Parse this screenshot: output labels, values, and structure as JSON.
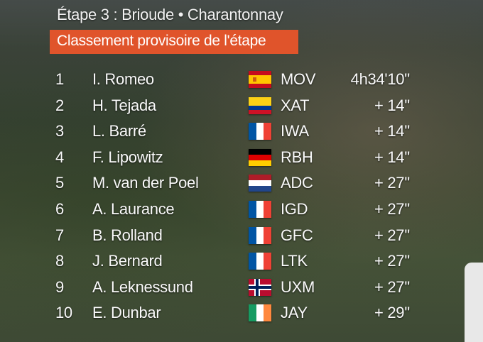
{
  "header": {
    "stage": "Étape 3 : Brioude • Charantonnay",
    "title": "Classement provisoire de l'étape"
  },
  "table": {
    "rows": [
      [
        "1",
        "I. Romeo",
        "MOV",
        "4h34'10''"
      ],
      [
        "2",
        "H. Tejada",
        "XAT",
        "+ 14''"
      ],
      [
        "3",
        "L. Barré",
        "IWA",
        "+ 14''"
      ],
      [
        "4",
        "F. Lipowitz",
        "RBH",
        "+ 14''"
      ],
      [
        "5",
        "M. van der Poel",
        "ADC",
        "+ 27''"
      ],
      [
        "6",
        "A. Laurance",
        "IGD",
        "+ 27''"
      ],
      [
        "7",
        "B. Rolland",
        "GFC",
        "+ 27''"
      ],
      [
        "8",
        "J. Bernard",
        "LTK",
        "+ 27''"
      ],
      [
        "9",
        "A. Leknessund",
        "UXM",
        "+ 27''"
      ],
      [
        "10",
        "E. Dunbar",
        "JAY",
        "+ 29''"
      ]
    ]
  }
}
